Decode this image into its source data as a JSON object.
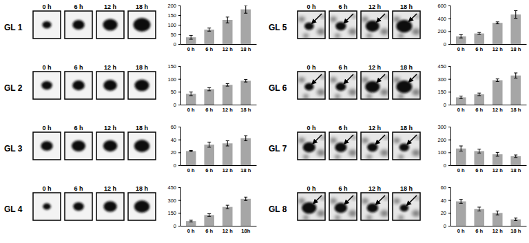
{
  "chart_data": [
    {
      "type": "bar",
      "title": "GL 1",
      "gel_labels": [
        "0 h",
        "6 h",
        "12 h",
        "18 h"
      ],
      "categories": [
        "0 h",
        "6 h",
        "12 h",
        "18 h"
      ],
      "values": [
        35,
        75,
        125,
        180
      ],
      "errors": [
        10,
        8,
        15,
        20
      ],
      "color": "#a6a6a6",
      "ylim": [
        0,
        200
      ],
      "yticks": [
        0,
        50,
        100,
        150,
        200
      ]
    },
    {
      "type": "bar",
      "title": "GL 2",
      "gel_labels": [
        "0 h",
        "6 h",
        "12 h",
        "18 h"
      ],
      "categories": [
        "0 h",
        "6 h",
        "12 h",
        "18 h"
      ],
      "values": [
        42,
        60,
        77,
        93
      ],
      "errors": [
        7,
        6,
        5,
        5
      ],
      "color": "#a6a6a6",
      "ylim": [
        0,
        150
      ],
      "yticks": [
        0,
        50,
        100,
        150
      ]
    },
    {
      "type": "bar",
      "title": "GL 3",
      "gel_labels": [
        "0 h",
        "6 h",
        "12 h",
        "18 h"
      ],
      "categories": [
        "0 h",
        "6 h",
        "12 h",
        "18 h"
      ],
      "values": [
        22,
        32,
        34,
        42
      ],
      "errors": [
        1,
        4,
        4,
        4
      ],
      "color": "#a6a6a6",
      "ylim": [
        0,
        60
      ],
      "yticks": [
        0,
        20,
        40,
        60
      ]
    },
    {
      "type": "bar",
      "title": "GL 4",
      "gel_labels": [
        "0 h",
        "6 h",
        "12 h",
        "18 h"
      ],
      "categories": [
        "0 h",
        "6 h",
        "12 h",
        "18h"
      ],
      "values": [
        55,
        125,
        220,
        315
      ],
      "errors": [
        10,
        15,
        20,
        20
      ],
      "color": "#a6a6a6",
      "ylim": [
        0,
        450
      ],
      "yticks": [
        0,
        150,
        300,
        450
      ]
    },
    {
      "type": "bar",
      "title": "GL 5",
      "gel_labels": [
        "0 h",
        "6 h",
        "12 h",
        "18 h"
      ],
      "categories": [
        "0 h",
        "6 h",
        "12 h",
        "18 h"
      ],
      "values": [
        120,
        165,
        330,
        460
      ],
      "errors": [
        25,
        15,
        15,
        60
      ],
      "color": "#a6a6a6",
      "ylim": [
        0,
        600
      ],
      "yticks": [
        0,
        200,
        400,
        600
      ]
    },
    {
      "type": "bar",
      "title": "GL 6",
      "gel_labels": [
        "0 h",
        "6 h",
        "12 h",
        "18 h"
      ],
      "categories": [
        "0 h",
        "6 h",
        "12 h",
        "18 h"
      ],
      "values": [
        85,
        120,
        285,
        340
      ],
      "errors": [
        15,
        15,
        15,
        30
      ],
      "color": "#a6a6a6",
      "ylim": [
        0,
        450
      ],
      "yticks": [
        0,
        150,
        300,
        450
      ]
    },
    {
      "type": "bar",
      "title": "GL 7",
      "gel_labels": [
        "0 h",
        "6 h",
        "12 h",
        "18 h"
      ],
      "categories": [
        "0 h",
        "6 h",
        "12 h",
        "18 h"
      ],
      "values": [
        130,
        110,
        85,
        70
      ],
      "errors": [
        20,
        15,
        15,
        10
      ],
      "color": "#a6a6a6",
      "ylim": [
        0,
        300
      ],
      "yticks": [
        0,
        100,
        200,
        300
      ]
    },
    {
      "type": "bar",
      "title": "GL 8",
      "gel_labels": [
        "0 h",
        "6 h",
        "12 h",
        "18 h"
      ],
      "categories": [
        "0 h",
        "6 h",
        "12 h",
        "18 h"
      ],
      "values": [
        38,
        26,
        20,
        10
      ],
      "errors": [
        3,
        3,
        3,
        2
      ],
      "color": "#a6a6a6",
      "ylim": [
        0,
        60
      ],
      "yticks": [
        0,
        20,
        40,
        60
      ]
    }
  ]
}
